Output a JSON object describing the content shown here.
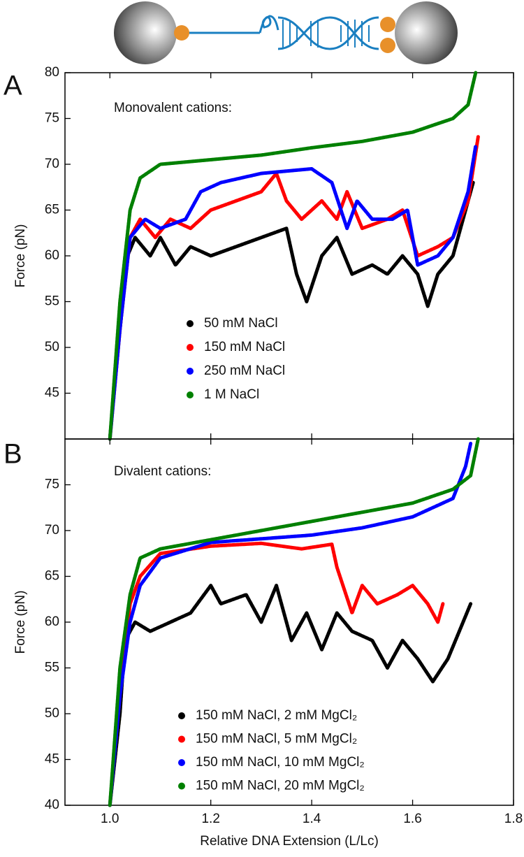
{
  "chart_data": [
    {
      "type": "line",
      "panel": "A",
      "annotation": "Monovalent cations:",
      "ylabel": "Force (pN)",
      "xlim": [
        0.911,
        1.8
      ],
      "ylim": [
        40,
        80
      ],
      "yticks": [
        45,
        50,
        55,
        60,
        65,
        70,
        75,
        80
      ],
      "series": [
        {
          "name": "50 mM NaCl",
          "color": "#000000",
          "x": [
            1.0,
            1.02,
            1.035,
            1.05,
            1.08,
            1.1,
            1.13,
            1.16,
            1.2,
            1.25,
            1.3,
            1.35,
            1.37,
            1.39,
            1.42,
            1.45,
            1.48,
            1.52,
            1.55,
            1.58,
            1.61,
            1.63,
            1.65,
            1.68,
            1.7,
            1.72
          ],
          "values": [
            40,
            52,
            60,
            62,
            60,
            62,
            59,
            61,
            60,
            61,
            62,
            63,
            58,
            55,
            60,
            62,
            58,
            59,
            58,
            60,
            58,
            54.5,
            58,
            60,
            64,
            68
          ]
        },
        {
          "name": "150 mM NaCl",
          "color": "#ff0000",
          "x": [
            1.0,
            1.02,
            1.04,
            1.06,
            1.09,
            1.12,
            1.16,
            1.2,
            1.25,
            1.3,
            1.33,
            1.35,
            1.38,
            1.42,
            1.45,
            1.47,
            1.5,
            1.55,
            1.58,
            1.61,
            1.65,
            1.68,
            1.71,
            1.73
          ],
          "values": [
            40,
            52,
            62,
            64,
            62,
            64,
            63,
            65,
            66,
            67,
            69,
            66,
            64,
            66,
            64,
            67,
            63,
            64,
            65,
            60,
            61,
            62,
            66,
            73
          ]
        },
        {
          "name": "250 mM NaCl",
          "color": "#0000ff",
          "x": [
            1.0,
            1.02,
            1.04,
            1.07,
            1.1,
            1.15,
            1.18,
            1.22,
            1.3,
            1.4,
            1.44,
            1.47,
            1.49,
            1.52,
            1.56,
            1.59,
            1.61,
            1.65,
            1.68,
            1.71,
            1.725
          ],
          "values": [
            40,
            52,
            62,
            64,
            63,
            64,
            67,
            68,
            69,
            69.5,
            68,
            63,
            66,
            64,
            64,
            65,
            59,
            60,
            62,
            67,
            72
          ]
        },
        {
          "name": "1 M NaCl",
          "color": "#008000",
          "x": [
            1.0,
            1.02,
            1.04,
            1.06,
            1.1,
            1.2,
            1.3,
            1.4,
            1.5,
            1.6,
            1.68,
            1.71,
            1.725
          ],
          "values": [
            40,
            55,
            65,
            68.5,
            70,
            70.5,
            71,
            71.8,
            72.5,
            73.5,
            75,
            76.5,
            80
          ]
        }
      ]
    },
    {
      "type": "line",
      "panel": "B",
      "annotation": "Divalent cations:",
      "ylabel": "Force (pN)",
      "xlabel": "Relative DNA Extension (L/Lc)",
      "xlim": [
        0.911,
        1.8
      ],
      "xticks": [
        {
          "value": 1,
          "label": "1.0"
        },
        1.2,
        1.4,
        1.6,
        1.8
      ],
      "ylim": [
        40,
        80
      ],
      "yticks": [
        40,
        45,
        50,
        55,
        60,
        65,
        70,
        75
      ],
      "series": [
        {
          "name": "150 mM NaCl, 2 mM MgCl₂",
          "color": "#000000",
          "x": [
            1.0,
            1.02,
            1.03,
            1.05,
            1.08,
            1.12,
            1.16,
            1.2,
            1.22,
            1.27,
            1.3,
            1.33,
            1.36,
            1.39,
            1.42,
            1.45,
            1.48,
            1.52,
            1.55,
            1.58,
            1.61,
            1.64,
            1.67,
            1.7,
            1.715
          ],
          "values": [
            40,
            50,
            58,
            60,
            59,
            60,
            61,
            64,
            62,
            63,
            60,
            64,
            58,
            61,
            57,
            61,
            59,
            58,
            55,
            58,
            56,
            53.5,
            56,
            60,
            62
          ]
        },
        {
          "name": "150 mM NaCl, 5 mM MgCl₂",
          "color": "#ff0000",
          "x": [
            1.0,
            1.02,
            1.04,
            1.06,
            1.1,
            1.2,
            1.3,
            1.38,
            1.44,
            1.45,
            1.48,
            1.5,
            1.53,
            1.57,
            1.6,
            1.63,
            1.65,
            1.66
          ],
          "values": [
            40,
            52,
            62,
            65,
            67.5,
            68.3,
            68.6,
            68,
            68.5,
            66,
            61,
            64,
            62,
            63,
            64,
            62,
            60,
            62
          ]
        },
        {
          "name": "150 mM NaCl, 10 mM MgCl₂",
          "color": "#0000ff",
          "x": [
            1.0,
            1.02,
            1.04,
            1.06,
            1.1,
            1.2,
            1.3,
            1.4,
            1.5,
            1.6,
            1.68,
            1.705,
            1.715
          ],
          "values": [
            40,
            52,
            60,
            64,
            67,
            68.7,
            69.1,
            69.5,
            70.3,
            71.5,
            73.5,
            77,
            79.5
          ]
        },
        {
          "name": "150 mM NaCl, 20 mM MgCl₂",
          "color": "#008000",
          "x": [
            1.0,
            1.02,
            1.04,
            1.06,
            1.1,
            1.2,
            1.3,
            1.4,
            1.5,
            1.6,
            1.68,
            1.715,
            1.73
          ],
          "values": [
            40,
            55,
            63,
            67,
            68,
            69,
            70,
            71,
            72,
            73,
            74.5,
            76,
            80
          ]
        }
      ]
    }
  ]
}
